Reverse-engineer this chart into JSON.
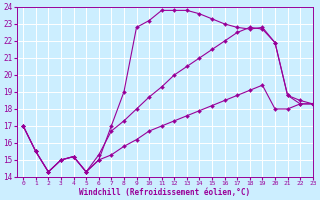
{
  "line1_x": [
    0,
    1,
    2,
    3,
    4,
    5,
    6,
    7,
    8,
    9,
    10,
    11,
    12,
    13,
    14,
    15,
    16,
    17,
    18,
    19,
    20,
    21,
    22,
    23
  ],
  "line1_y": [
    17.0,
    15.5,
    14.3,
    15.0,
    15.2,
    14.3,
    15.0,
    17.0,
    19.0,
    22.8,
    23.2,
    23.8,
    23.8,
    23.8,
    23.6,
    23.3,
    23.0,
    22.8,
    22.7,
    22.8,
    21.9,
    18.8,
    18.3,
    18.3
  ],
  "line2_x": [
    0,
    1,
    2,
    3,
    4,
    5,
    6,
    7,
    8,
    9,
    10,
    11,
    12,
    13,
    14,
    15,
    16,
    17,
    18,
    19,
    20,
    21,
    22,
    23
  ],
  "line2_y": [
    17.0,
    15.5,
    14.3,
    15.0,
    15.2,
    14.3,
    15.3,
    16.7,
    17.3,
    18.0,
    18.7,
    19.3,
    20.0,
    20.5,
    21.0,
    21.5,
    22.0,
    22.5,
    22.8,
    22.7,
    21.9,
    18.8,
    18.5,
    18.3
  ],
  "line3_x": [
    0,
    1,
    2,
    3,
    4,
    5,
    6,
    7,
    8,
    9,
    10,
    11,
    12,
    13,
    14,
    15,
    16,
    17,
    18,
    19,
    20,
    21,
    22,
    23
  ],
  "line3_y": [
    17.0,
    15.5,
    14.3,
    15.0,
    15.2,
    14.3,
    15.0,
    15.3,
    15.8,
    16.2,
    16.7,
    17.0,
    17.3,
    17.6,
    17.9,
    18.2,
    18.5,
    18.8,
    19.1,
    19.4,
    18.0,
    18.0,
    18.3,
    18.3
  ],
  "line_color": "#990099",
  "bg_color": "#cceeff",
  "grid_color": "#ffffff",
  "xlabel": "Windchill (Refroidissement éolien,°C)",
  "ylim": [
    14,
    24
  ],
  "xlim": [
    -0.5,
    23
  ],
  "yticks": [
    14,
    15,
    16,
    17,
    18,
    19,
    20,
    21,
    22,
    23,
    24
  ],
  "xticks": [
    0,
    1,
    2,
    3,
    4,
    5,
    6,
    7,
    8,
    9,
    10,
    11,
    12,
    13,
    14,
    15,
    16,
    17,
    18,
    19,
    20,
    21,
    22,
    23
  ]
}
